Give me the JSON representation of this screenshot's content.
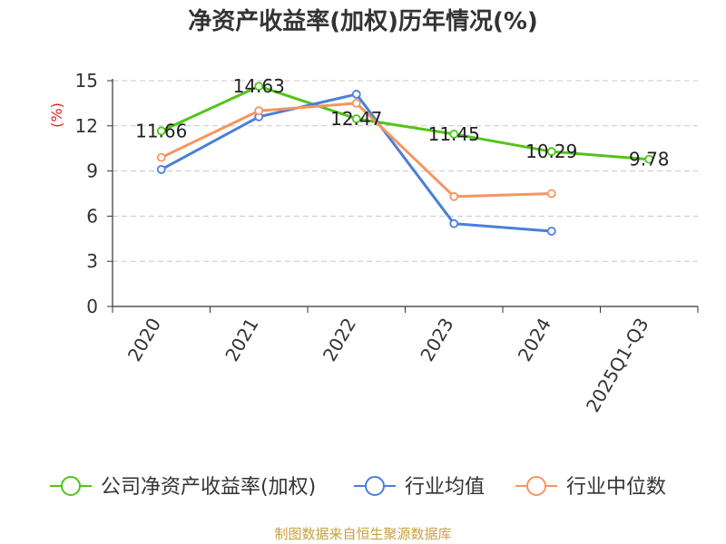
{
  "chart_data": {
    "type": "line",
    "title": "净资产收益率(加权)历年情况(%)",
    "ylabel": "(%)",
    "xlabel": "",
    "categories": [
      "2020",
      "2021",
      "2022",
      "2023",
      "2024",
      "2025Q1-Q3"
    ],
    "ylim": [
      0,
      15
    ],
    "yticks": [
      0,
      3,
      6,
      9,
      12,
      15
    ],
    "grid": true,
    "legend_position": "bottom",
    "series": [
      {
        "name": "公司净资产收益率(加权)",
        "color": "#52c41a",
        "values": [
          11.66,
          14.63,
          12.47,
          11.45,
          10.29,
          9.78
        ],
        "data_labels": [
          "11.66",
          "14.63",
          "12.47",
          "11.45",
          "10.29",
          "9.78"
        ]
      },
      {
        "name": "行业均值",
        "color": "#4a7fd8",
        "values": [
          9.1,
          12.6,
          14.1,
          5.5,
          5.0,
          null
        ]
      },
      {
        "name": "行业中位数",
        "color": "#f59561",
        "values": [
          9.9,
          13.0,
          13.5,
          7.3,
          7.5,
          null
        ]
      }
    ]
  },
  "source": "制图数据来自恒生聚源数据库"
}
